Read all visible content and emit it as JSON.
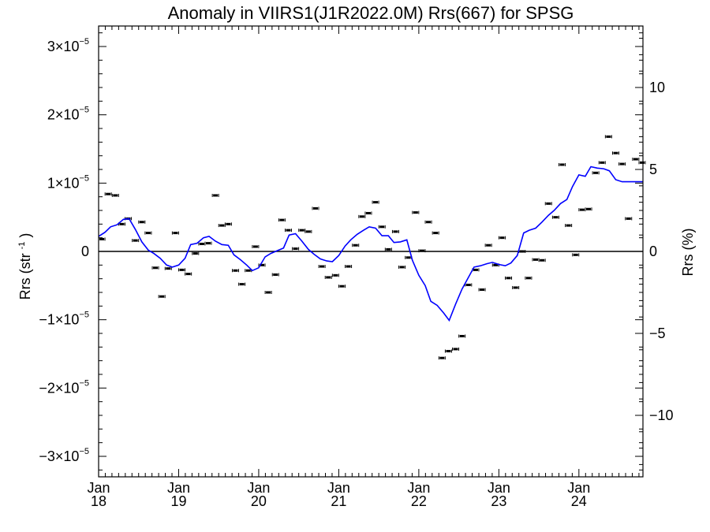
{
  "chart_data": {
    "type": "scatter",
    "title": "Anomaly in VIIRS1(J1R2022.0M) Rrs(667) for SPSG",
    "ylabel_left": {
      "text": "Rrs (str",
      "sup": "-1",
      "close": ")"
    },
    "ylabel_right": "Rrs (%)",
    "xlim": [
      2018.0,
      2024.8
    ],
    "ylim": [
      -3.3e-05,
      3.3e-05
    ],
    "ylim_right": [
      -13.75,
      13.75
    ],
    "x_ticks": [
      {
        "x": 2018,
        "month": "Jan",
        "year": "18"
      },
      {
        "x": 2019,
        "month": "Jan",
        "year": "19"
      },
      {
        "x": 2020,
        "month": "Jan",
        "year": "20"
      },
      {
        "x": 2021,
        "month": "Jan",
        "year": "21"
      },
      {
        "x": 2022,
        "month": "Jan",
        "year": "22"
      },
      {
        "x": 2023,
        "month": "Jan",
        "year": "23"
      },
      {
        "x": 2024,
        "month": "Jan",
        "year": "24"
      }
    ],
    "y_ticks_left": [
      {
        "value": 3e-05,
        "base": "3×10",
        "exp": "−5"
      },
      {
        "value": 2e-05,
        "base": "2×10",
        "exp": "−5"
      },
      {
        "value": 1e-05,
        "base": "1×10",
        "exp": "−5"
      },
      {
        "value": 0,
        "base": "0",
        "exp": ""
      },
      {
        "value": -1e-05,
        "base": "−1×10",
        "exp": "−5"
      },
      {
        "value": -2e-05,
        "base": "−2×10",
        "exp": "−5"
      },
      {
        "value": -3e-05,
        "base": "−3×10",
        "exp": "−5"
      }
    ],
    "y_ticks_right": [
      {
        "value": 10,
        "label": "10"
      },
      {
        "value": 5,
        "label": "5"
      },
      {
        "value": 0,
        "label": "0"
      },
      {
        "value": -5,
        "label": "−5"
      },
      {
        "value": -10,
        "label": "−10"
      }
    ],
    "zero_line": true,
    "series": [
      {
        "style": "points",
        "color": "#000000",
        "x": [
          2018.04,
          2018.12,
          2018.21,
          2018.29,
          2018.37,
          2018.46,
          2018.54,
          2018.62,
          2018.71,
          2018.79,
          2018.87,
          2018.96,
          2019.04,
          2019.12,
          2019.21,
          2019.29,
          2019.37,
          2019.46,
          2019.54,
          2019.62,
          2019.71,
          2019.79,
          2019.87,
          2019.96,
          2020.04,
          2020.12,
          2020.21,
          2020.29,
          2020.37,
          2020.46,
          2020.54,
          2020.62,
          2020.71,
          2020.79,
          2020.87,
          2020.96,
          2021.04,
          2021.12,
          2021.21,
          2021.29,
          2021.37,
          2021.46,
          2021.54,
          2021.62,
          2021.71,
          2021.79,
          2021.87,
          2021.96,
          2022.04,
          2022.12,
          2022.21,
          2022.29,
          2022.37,
          2022.46,
          2022.54,
          2022.62,
          2022.71,
          2022.79,
          2022.87,
          2022.96,
          2023.04,
          2023.12,
          2023.21,
          2023.29,
          2023.37,
          2023.46,
          2023.54,
          2023.62,
          2023.71,
          2023.79,
          2023.87,
          2023.96,
          2024.04,
          2024.12,
          2024.21,
          2024.29,
          2024.37,
          2024.46,
          2024.54,
          2024.62,
          2024.71,
          2024.79
        ],
        "y": [
          1.8e-06,
          8.4e-06,
          8.2e-06,
          4e-06,
          4.8e-06,
          1.6e-06,
          4.3e-06,
          2.7e-06,
          -2.4e-06,
          -6.6e-06,
          -2.5e-06,
          2.7e-06,
          -2.7e-06,
          -3.3e-06,
          -3e-07,
          1.1e-06,
          1.2e-06,
          8.2e-06,
          3.8e-06,
          4e-06,
          -2.8e-06,
          -4.8e-06,
          -2.8e-06,
          7e-07,
          -2e-06,
          -6e-06,
          -3.4e-06,
          4.6e-06,
          3.1e-06,
          4e-07,
          3.1e-06,
          2.9e-06,
          6.3e-06,
          -2.2e-06,
          -3.8e-06,
          -3.5e-06,
          -5.1e-06,
          -2.2e-06,
          9e-07,
          5.1e-06,
          5.6e-06,
          7.2e-06,
          3.6e-06,
          3e-07,
          2.9e-06,
          -2.3e-06,
          -9e-07,
          5.7e-06,
          1e-07,
          4.3e-06,
          2.7e-06,
          -1.56e-05,
          -1.46e-05,
          -1.43e-05,
          -1.24e-05,
          -4.9e-06,
          -2.7e-06,
          -5.6e-06,
          9e-07,
          -2e-06,
          2e-06,
          -3.9e-06,
          -5.3e-06,
          0.0,
          -3.9e-06,
          -1.2e-06,
          -1.3e-06,
          7e-06,
          5e-06,
          1.27e-05,
          3.8e-06,
          -5e-07,
          6.1e-06,
          6.2e-06,
          1.15e-05,
          1.3e-05,
          1.68e-05,
          1.44e-05,
          1.28e-05,
          4.8e-06,
          1.35e-05,
          1.3e-05
        ]
      },
      {
        "style": "line",
        "color": "#0000ff",
        "x": [
          2018.0,
          2018.08,
          2018.15,
          2018.23,
          2018.31,
          2018.38,
          2018.46,
          2018.54,
          2018.62,
          2018.69,
          2018.77,
          2018.85,
          2018.92,
          2019.0,
          2019.08,
          2019.15,
          2019.23,
          2019.31,
          2019.38,
          2019.46,
          2019.54,
          2019.62,
          2019.69,
          2019.77,
          2019.85,
          2019.92,
          2020.0,
          2020.08,
          2020.15,
          2020.23,
          2020.31,
          2020.38,
          2020.46,
          2020.54,
          2020.62,
          2020.69,
          2020.77,
          2020.85,
          2020.92,
          2021.0,
          2021.08,
          2021.15,
          2021.23,
          2021.31,
          2021.38,
          2021.46,
          2021.54,
          2021.62,
          2021.69,
          2021.77,
          2021.85,
          2021.92,
          2022.0,
          2022.08,
          2022.15,
          2022.23,
          2022.31,
          2022.38,
          2022.46,
          2022.54,
          2022.62,
          2022.69,
          2022.77,
          2022.85,
          2022.92,
          2023.0,
          2023.08,
          2023.15,
          2023.23,
          2023.31,
          2023.38,
          2023.46,
          2023.54,
          2023.62,
          2023.69,
          2023.77,
          2023.85,
          2023.92,
          2024.0,
          2024.08,
          2024.15,
          2024.23,
          2024.31,
          2024.38,
          2024.46,
          2024.54,
          2024.62,
          2024.69,
          2024.77,
          2024.8
        ],
        "y": [
          2.2e-06,
          2.8e-06,
          3.6e-06,
          3.9e-06,
          4.7e-06,
          4.8e-06,
          3.2e-06,
          1.4e-06,
          2e-07,
          -3e-07,
          -1e-06,
          -2e-06,
          -2.3e-06,
          -2e-06,
          -1e-06,
          1e-06,
          1.2e-06,
          2e-06,
          2.2e-06,
          1.5e-06,
          1e-06,
          9e-07,
          -5e-07,
          -1.2e-06,
          -2e-06,
          -2.8e-06,
          -2.4e-06,
          -8e-07,
          -3e-07,
          1e-07,
          5e-07,
          2.4e-06,
          2.6e-06,
          1.5e-06,
          3e-07,
          -4e-07,
          -1.1e-06,
          -1.4e-06,
          -1.5e-06,
          -6e-07,
          8e-07,
          1.7e-06,
          2.5e-06,
          3.1e-06,
          3.6e-06,
          3.4e-06,
          2.3e-06,
          2.3e-06,
          1.3e-06,
          1.4e-06,
          1.7e-06,
          -1.3e-06,
          -3.5e-06,
          -5e-06,
          -7.3e-06,
          -7.9e-06,
          -9e-06,
          -1.01e-05,
          -7.7e-06,
          -5.5e-06,
          -3.8e-06,
          -2.3e-06,
          -2.1e-06,
          -1.8e-06,
          -1.6e-06,
          -1.9e-06,
          -2.1e-06,
          -1.7e-06,
          -6e-07,
          2.7e-06,
          3.1e-06,
          3.4e-06,
          4.3e-06,
          5.3e-06,
          6e-06,
          7e-06,
          7.6e-06,
          9.5e-06,
          1.12e-05,
          1.1e-05,
          1.24e-05,
          1.22e-05,
          1.21e-05,
          1.18e-05,
          1.05e-05,
          1.02e-05,
          1.02e-05,
          1.02e-05,
          1.02e-05,
          1.02e-05
        ]
      }
    ]
  }
}
